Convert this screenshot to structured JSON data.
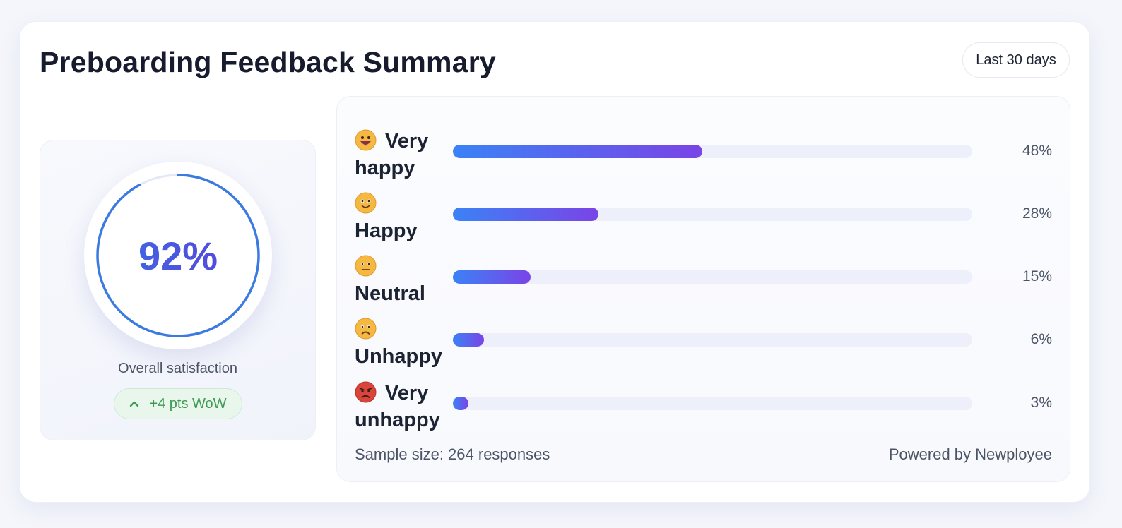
{
  "header": {
    "title": "Preboarding Feedback Summary",
    "range_label": "Last 30 days"
  },
  "summary": {
    "value_text": "92%",
    "value": 0.92,
    "label": "Overall satisfaction",
    "delta_label": "+4 pts WoW",
    "delta_icon": "chevron-up-icon",
    "ring_color": "#3b7be0",
    "delta_color": "#3f9a55"
  },
  "distribution": {
    "rows": [
      {
        "label": "Very happy",
        "emoji": "grinning-face-icon",
        "pct_text": "48%",
        "value": 48
      },
      {
        "label": "Happy",
        "emoji": "smiling-face-icon",
        "pct_text": "28%",
        "value": 28
      },
      {
        "label": "Neutral",
        "emoji": "neutral-face-icon",
        "pct_text": "15%",
        "value": 15
      },
      {
        "label": "Unhappy",
        "emoji": "frowning-face-icon",
        "pct_text": "6%",
        "value": 6
      },
      {
        "label": "Very unhappy",
        "emoji": "angry-face-icon",
        "pct_text": "3%",
        "value": 3
      }
    ],
    "bar_gradient": [
      "#3b82f6",
      "#7a44e6"
    ],
    "sample_size": "Sample size: 264 responses",
    "powered_by": "Powered by Newployee"
  }
}
